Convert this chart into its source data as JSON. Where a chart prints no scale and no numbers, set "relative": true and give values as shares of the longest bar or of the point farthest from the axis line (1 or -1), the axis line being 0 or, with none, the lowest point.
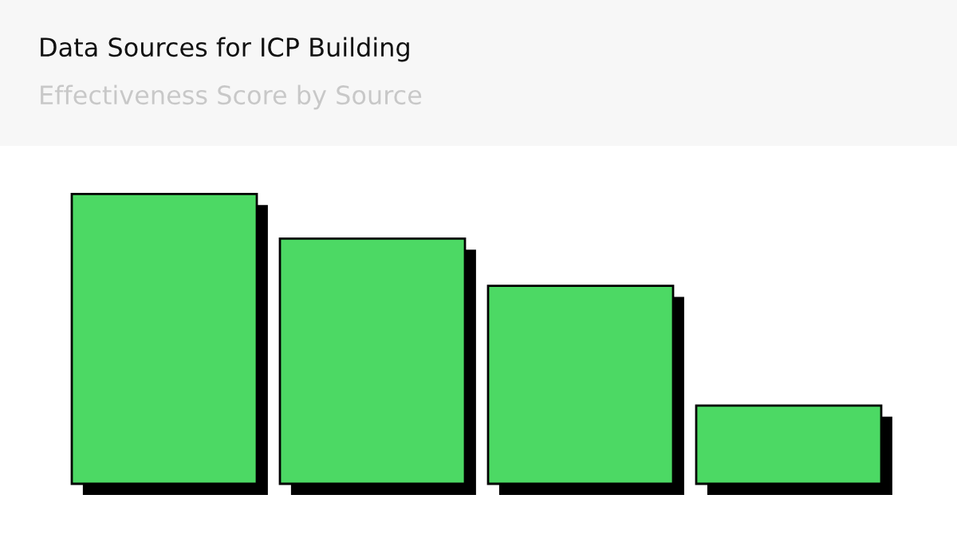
{
  "chart_data": {
    "type": "bar",
    "title": "Data Sources for ICP Building",
    "subtitle": "Effectiveness Score by Source",
    "categories": [
      null,
      null,
      null,
      null
    ],
    "values": [
      1,
      0.846,
      0.683,
      0.27
    ],
    "color": "#4cd964",
    "relative": true,
    "grid": false,
    "legend": false
  }
}
